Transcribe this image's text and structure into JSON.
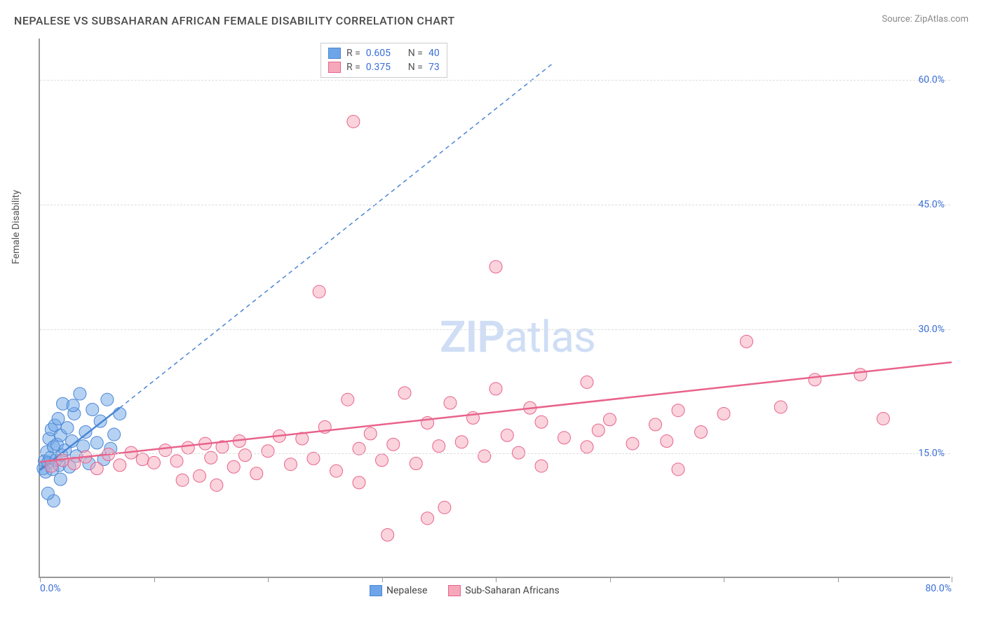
{
  "title": "NEPALESE VS SUBSAHARAN AFRICAN FEMALE DISABILITY CORRELATION CHART",
  "source": "Source: ZipAtlas.com",
  "y_axis_title": "Female Disability",
  "watermark_bold": "ZIP",
  "watermark_light": "atlas",
  "chart": {
    "type": "scatter",
    "background_color": "#ffffff",
    "grid_color": "#dddddd",
    "axis_color": "#999999",
    "label_color": "#3b6fd6",
    "xlim": [
      0,
      80
    ],
    "ylim": [
      0,
      65
    ],
    "x_ticks": [
      0,
      10,
      20,
      30,
      40,
      50,
      60,
      70,
      80
    ],
    "y_ticks": [
      15,
      30,
      45,
      60
    ],
    "x_tick_labels": {
      "0": "0.0%",
      "80": "80.0%"
    },
    "y_tick_labels": {
      "15": "15.0%",
      "30": "30.0%",
      "45": "45.0%",
      "60": "60.0%"
    },
    "marker_radius": 9,
    "marker_opacity": 0.5,
    "line_width_solid": 2.5,
    "line_width_dash": 1.5,
    "dash_pattern": "6,5",
    "series": [
      {
        "name": "Nepalese",
        "color": "#6da5e8",
        "stroke": "#4a86d4",
        "r_value": "0.605",
        "n_value": "40",
        "regression_solid": {
          "x1": 0,
          "y1": 13,
          "x2": 7,
          "y2": 20.5
        },
        "regression_dash": {
          "x1": 7,
          "y1": 20.5,
          "x2": 45,
          "y2": 62
        },
        "points": [
          [
            0.3,
            13.2
          ],
          [
            0.4,
            14.1
          ],
          [
            0.5,
            12.8
          ],
          [
            0.6,
            15.2
          ],
          [
            0.7,
            13.9
          ],
          [
            0.8,
            16.8
          ],
          [
            0.9,
            14.5
          ],
          [
            1.0,
            17.9
          ],
          [
            1.1,
            13.1
          ],
          [
            1.2,
            15.8
          ],
          [
            1.3,
            18.4
          ],
          [
            1.4,
            14.2
          ],
          [
            1.5,
            16.1
          ],
          [
            1.6,
            19.2
          ],
          [
            1.7,
            13.6
          ],
          [
            1.8,
            17.2
          ],
          [
            1.9,
            14.8
          ],
          [
            2.0,
            21.0
          ],
          [
            2.2,
            15.4
          ],
          [
            2.4,
            18.1
          ],
          [
            2.6,
            13.4
          ],
          [
            2.8,
            16.5
          ],
          [
            3.0,
            19.8
          ],
          [
            3.2,
            14.7
          ],
          [
            3.5,
            22.2
          ],
          [
            3.8,
            15.9
          ],
          [
            4.0,
            17.6
          ],
          [
            4.3,
            13.8
          ],
          [
            4.6,
            20.3
          ],
          [
            5.0,
            16.3
          ],
          [
            5.3,
            18.9
          ],
          [
            5.6,
            14.3
          ],
          [
            5.9,
            21.5
          ],
          [
            6.2,
            15.6
          ],
          [
            6.5,
            17.3
          ],
          [
            1.2,
            9.3
          ],
          [
            0.7,
            10.2
          ],
          [
            1.8,
            11.9
          ],
          [
            7.0,
            19.8
          ],
          [
            2.9,
            20.8
          ]
        ]
      },
      {
        "name": "Sub-Saharan Africans",
        "color": "#f6a8ba",
        "stroke": "#e8638b",
        "r_value": "0.375",
        "n_value": "73",
        "regression_solid": {
          "x1": 0,
          "y1": 14,
          "x2": 80,
          "y2": 26
        },
        "regression_dash": null,
        "points": [
          [
            1,
            13.5
          ],
          [
            2,
            14.2
          ],
          [
            3,
            13.8
          ],
          [
            4,
            14.6
          ],
          [
            5,
            13.2
          ],
          [
            6,
            14.9
          ],
          [
            7,
            13.6
          ],
          [
            8,
            15.1
          ],
          [
            9,
            14.3
          ],
          [
            10,
            13.9
          ],
          [
            11,
            15.4
          ],
          [
            12,
            14.1
          ],
          [
            12.5,
            11.8
          ],
          [
            13,
            15.7
          ],
          [
            14,
            12.3
          ],
          [
            14.5,
            16.2
          ],
          [
            15,
            14.5
          ],
          [
            15.5,
            11.2
          ],
          [
            16,
            15.8
          ],
          [
            17,
            13.4
          ],
          [
            17.5,
            16.5
          ],
          [
            18,
            14.8
          ],
          [
            19,
            12.6
          ],
          [
            20,
            15.3
          ],
          [
            21,
            17.1
          ],
          [
            22,
            13.7
          ],
          [
            23,
            16.8
          ],
          [
            24,
            14.4
          ],
          [
            24.5,
            34.5
          ],
          [
            25,
            18.2
          ],
          [
            26,
            12.9
          ],
          [
            27,
            21.5
          ],
          [
            27.5,
            55.0
          ],
          [
            28,
            15.6
          ],
          [
            28,
            11.5
          ],
          [
            29,
            17.4
          ],
          [
            30,
            14.2
          ],
          [
            30.5,
            5.2
          ],
          [
            31,
            16.1
          ],
          [
            32,
            22.3
          ],
          [
            33,
            13.8
          ],
          [
            34,
            18.7
          ],
          [
            34,
            7.2
          ],
          [
            35,
            15.9
          ],
          [
            35.5,
            8.5
          ],
          [
            36,
            21.1
          ],
          [
            37,
            16.4
          ],
          [
            38,
            19.3
          ],
          [
            39,
            14.7
          ],
          [
            40,
            22.8
          ],
          [
            40,
            37.5
          ],
          [
            41,
            17.2
          ],
          [
            42,
            15.1
          ],
          [
            43,
            20.5
          ],
          [
            44,
            18.8
          ],
          [
            44,
            13.5
          ],
          [
            46,
            16.9
          ],
          [
            48,
            23.6
          ],
          [
            49,
            17.8
          ],
          [
            50,
            19.1
          ],
          [
            52,
            16.2
          ],
          [
            54,
            18.5
          ],
          [
            55,
            16.5
          ],
          [
            56,
            20.2
          ],
          [
            58,
            17.6
          ],
          [
            60,
            19.8
          ],
          [
            62,
            28.5
          ],
          [
            65,
            20.6
          ],
          [
            68,
            23.9
          ],
          [
            72,
            24.5
          ],
          [
            74,
            19.2
          ],
          [
            56,
            13.1
          ],
          [
            48,
            15.8
          ]
        ]
      }
    ]
  },
  "legend_top": {
    "r_label": "R =",
    "n_label": "N ="
  },
  "legend_bottom": [
    {
      "label": "Nepalese"
    },
    {
      "label": "Sub-Saharan Africans"
    }
  ]
}
